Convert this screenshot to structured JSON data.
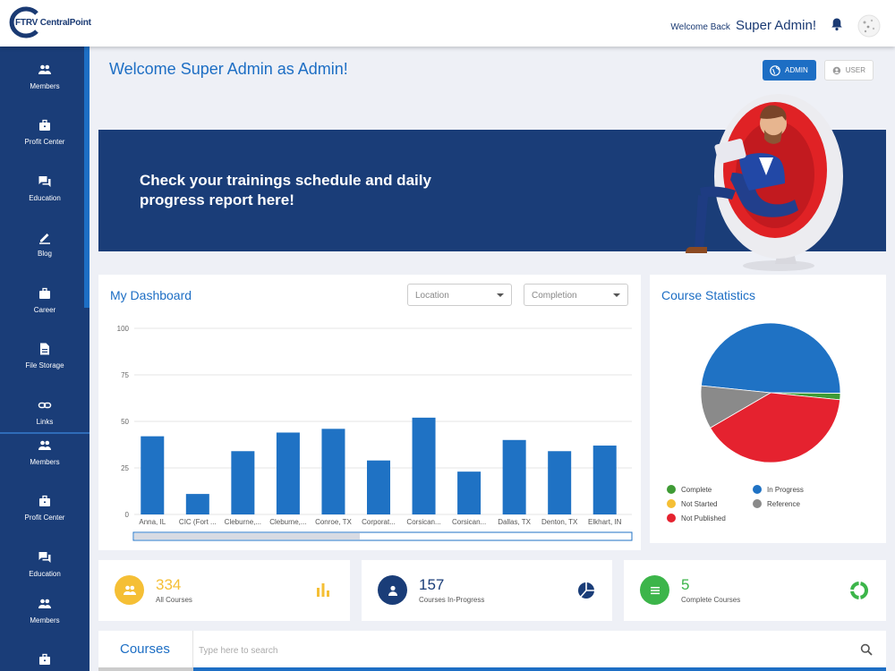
{
  "header": {
    "logo_text": "FTRV CentralPoint",
    "welcome_prefix": "Welcome Back",
    "user_name": "Super Admin!"
  },
  "sidebar": {
    "items": [
      {
        "label": "Members",
        "icon": "members-icon"
      },
      {
        "label": "Profit Center",
        "icon": "briefcase-icon"
      },
      {
        "label": "Education",
        "icon": "chat-icon"
      },
      {
        "label": "Blog",
        "icon": "pencil-icon"
      },
      {
        "label": "Career",
        "icon": "bag-icon"
      },
      {
        "label": "File Storage",
        "icon": "file-icon"
      },
      {
        "label": "Links",
        "icon": "link-icon"
      },
      {
        "label": "Members",
        "icon": "members-icon"
      },
      {
        "label": "Profit Center",
        "icon": "briefcase-icon"
      },
      {
        "label": "Education",
        "icon": "chat-icon"
      },
      {
        "label": "Members",
        "icon": "members-icon"
      },
      {
        "label": "",
        "icon": "briefcase-icon"
      }
    ]
  },
  "page": {
    "title": "Welcome Super Admin as Admin!",
    "admin_label": "ADMIN",
    "user_label": "USER"
  },
  "banner": {
    "text": "Check your trainings schedule and daily progress report here!"
  },
  "dashboard": {
    "title": "My Dashboard",
    "location_label": "Location",
    "completion_label": "Completion"
  },
  "stats": {
    "title": "Course Statistics",
    "legend": [
      {
        "label": "Complete",
        "color": "#3f9b35"
      },
      {
        "label": "In Progress",
        "color": "#1f72c4"
      },
      {
        "label": "Not Started",
        "color": "#f5bf35"
      },
      {
        "label": "Reference",
        "color": "#8a8a8a"
      },
      {
        "label": "Not Published",
        "color": "#e5222f"
      }
    ]
  },
  "chart_data": [
    {
      "type": "bar",
      "title": "My Dashboard",
      "categories": [
        "Anna, IL",
        "CIC (Fort ...",
        "Cleburne,...",
        "Cleburne,...",
        "Conroe, TX",
        "Corporat...",
        "Corsican...",
        "Corsican...",
        "Dallas, TX",
        "Denton, TX",
        "Elkhart, IN"
      ],
      "values": [
        42,
        11,
        34,
        44,
        46,
        29,
        52,
        23,
        40,
        34,
        37
      ],
      "yticks": [
        0,
        25,
        50,
        75,
        100
      ],
      "ylim": [
        0,
        100
      ],
      "xlabel": "",
      "ylabel": "",
      "color": "#1f72c4"
    },
    {
      "type": "pie",
      "title": "Course Statistics",
      "slices": [
        {
          "label": "In Progress",
          "value": 48.5,
          "color": "#1f72c4"
        },
        {
          "label": "Complete",
          "value": 1.5,
          "color": "#3f9b35"
        },
        {
          "label": "Not Published",
          "value": 40,
          "color": "#e5222f"
        },
        {
          "label": "Reference",
          "value": 10,
          "color": "#8a8a8a"
        },
        {
          "label": "Not Started",
          "value": 0,
          "color": "#f5bf35"
        }
      ]
    }
  ],
  "kpis": [
    {
      "value": "334",
      "label": "All Courses",
      "color": "#f5bf35"
    },
    {
      "value": "157",
      "label": "Courses In-Progress",
      "color": "#1a3d78"
    },
    {
      "value": "5",
      "label": "Complete Courses",
      "color": "#3cb54a"
    }
  ],
  "courses": {
    "tab_label": "Courses",
    "search_placeholder": "Type here to search"
  }
}
